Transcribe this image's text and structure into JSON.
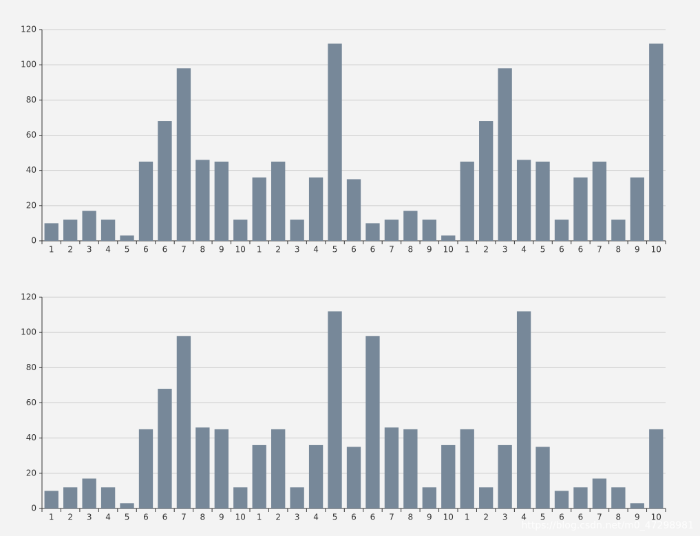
{
  "chart_data": [
    {
      "type": "bar",
      "color": "#778899",
      "grid": true,
      "categories": [
        "1",
        "2",
        "3",
        "4",
        "5",
        "6",
        "6",
        "7",
        "8",
        "9",
        "10",
        "1",
        "2",
        "3",
        "4",
        "5",
        "6",
        "6",
        "7",
        "8",
        "9",
        "10",
        "1",
        "2",
        "3",
        "4",
        "5",
        "6",
        "6",
        "7",
        "8",
        "9",
        "10"
      ],
      "values": [
        10,
        12,
        17,
        12,
        3,
        45,
        68,
        98,
        46,
        45,
        12,
        36,
        45,
        12,
        36,
        112,
        35,
        10,
        12,
        17,
        12,
        3,
        45,
        68,
        98,
        46,
        45,
        12,
        36,
        45,
        12,
        36,
        112
      ],
      "ylim": [
        0,
        120
      ],
      "yticks": [
        0,
        20,
        40,
        60,
        80,
        100,
        120
      ]
    },
    {
      "type": "bar",
      "color": "#778899",
      "grid": true,
      "categories": [
        "1",
        "2",
        "3",
        "4",
        "5",
        "6",
        "6",
        "7",
        "8",
        "9",
        "10",
        "1",
        "2",
        "3",
        "4",
        "5",
        "6",
        "6",
        "7",
        "8",
        "9",
        "10",
        "1",
        "2",
        "3",
        "4",
        "5",
        "6",
        "6",
        "7",
        "8",
        "9",
        "10"
      ],
      "values": [
        10,
        12,
        17,
        12,
        3,
        45,
        68,
        98,
        46,
        45,
        12,
        36,
        45,
        12,
        36,
        112,
        35,
        98,
        46,
        45,
        12,
        36,
        45,
        12,
        36,
        112,
        35,
        10,
        12,
        17,
        12,
        3,
        45
      ],
      "ylim": [
        0,
        120
      ],
      "yticks": [
        0,
        20,
        40,
        60,
        80,
        100,
        120
      ]
    }
  ],
  "watermark": "https://blog.csdn.net/m0_47298981"
}
